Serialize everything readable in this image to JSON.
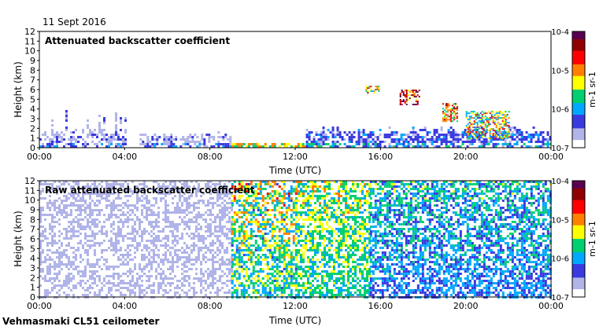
{
  "date_label": "11 Sept 2016",
  "footer_label": "Vehmasmaki CL51 ceilometer",
  "colors": {
    "scale": [
      "#ffffff",
      "#b0b4e8",
      "#3a3ae0",
      "#00a8ff",
      "#00d070",
      "#ffff00",
      "#ff8000",
      "#ff0000",
      "#900000",
      "#5a0050"
    ]
  },
  "chart_data": [
    {
      "type": "heatmap",
      "title": "Attenuated backscatter coefficient",
      "xlabel": "Time (UTC)",
      "ylabel": "Height (km)",
      "x_ticks": [
        "00:00",
        "04:00",
        "08:00",
        "12:00",
        "16:00",
        "20:00",
        "00:00"
      ],
      "y_ticks": [
        0,
        1,
        2,
        3,
        4,
        5,
        6,
        7,
        8,
        9,
        10,
        11,
        12
      ],
      "xlim_hours": [
        0,
        24
      ],
      "ylim_km": [
        0,
        12
      ],
      "colorbar": {
        "label": "m-1 sr-1",
        "ticks": [
          "10-4",
          "10-5",
          "10-6",
          "10-7"
        ],
        "range_log10": [
          -7,
          -4
        ]
      },
      "features": [
        {
          "name": "boundary layer 00-04",
          "x": [
            0,
            4
          ],
          "top_km": 1.6,
          "spikes_to_km": 4,
          "log10": -6.9
        },
        {
          "name": "boundary layer 04-09",
          "x": [
            4.7,
            9
          ],
          "top_km": 1.3,
          "log10": -6.9
        },
        {
          "name": "low layer 09-13",
          "x": [
            9,
            13
          ],
          "top_km": 0.3,
          "log10": -5.8
        },
        {
          "name": "boundary layer 13-24",
          "x": [
            12.5,
            24
          ],
          "top_km": 1.8,
          "log10": -6.6
        },
        {
          "name": "cloud 15.5h",
          "x": [
            15.3,
            15.9
          ],
          "y": [
            5.7,
            6.4
          ],
          "log10": -5.2
        },
        {
          "name": "cloud 17h",
          "x": [
            16.9,
            17.8
          ],
          "y": [
            4.4,
            6.0
          ],
          "log10": -4.6
        },
        {
          "name": "cloud 19h",
          "x": [
            18.9,
            19.6
          ],
          "y": [
            2.8,
            4.6
          ],
          "log10": -5.0
        },
        {
          "name": "cloud 20-22h",
          "x": [
            20,
            22
          ],
          "y": [
            1.0,
            3.8
          ],
          "log10": -5.5
        }
      ]
    },
    {
      "type": "heatmap",
      "title": "Raw attenuated backscatter coefficient",
      "xlabel": "Time (UTC)",
      "ylabel": "Height (km)",
      "x_ticks": [
        "00:00",
        "04:00",
        "08:00",
        "12:00",
        "16:00",
        "20:00",
        "00:00"
      ],
      "y_ticks": [
        0,
        1,
        2,
        3,
        4,
        5,
        6,
        7,
        8,
        9,
        10,
        11,
        12
      ],
      "xlim_hours": [
        0,
        24
      ],
      "ylim_km": [
        0,
        12
      ],
      "colorbar": {
        "label": "m-1 sr-1",
        "ticks": [
          "10-4",
          "10-5",
          "10-6",
          "10-7"
        ],
        "range_log10": [
          -7,
          -4
        ]
      },
      "background_by_hour": [
        {
          "x": [
            0,
            9
          ],
          "log10_low": -6.9,
          "log10_high": -6.5
        },
        {
          "x": [
            9,
            12
          ],
          "log10_low": -6.2,
          "log10_high": -4.6
        },
        {
          "x": [
            12,
            15.5
          ],
          "log10_low": -6.0,
          "log10_high": -5.0
        },
        {
          "x": [
            15.5,
            24
          ],
          "log10_low": -6.4,
          "log10_high": -5.4
        }
      ]
    }
  ]
}
